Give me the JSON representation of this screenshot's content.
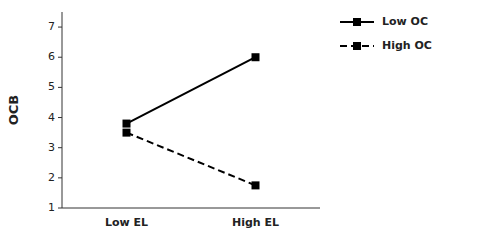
{
  "chart_data": {
    "type": "line",
    "categories": [
      "Low EL",
      "High EL"
    ],
    "ylabel": "OCB",
    "ylim": [
      1,
      7.5
    ],
    "yticks": [
      1,
      2,
      3,
      4,
      5,
      6,
      7
    ],
    "grid": false,
    "legend": "upper right",
    "series": [
      {
        "name": "Low OC",
        "color": "#000000",
        "line_style": "solid",
        "marker": "square",
        "values": [
          3.8,
          6.0
        ]
      },
      {
        "name": "High OC",
        "color": "#000000",
        "line_style": "dashed",
        "marker": "square",
        "values": [
          3.5,
          1.75
        ]
      }
    ]
  }
}
